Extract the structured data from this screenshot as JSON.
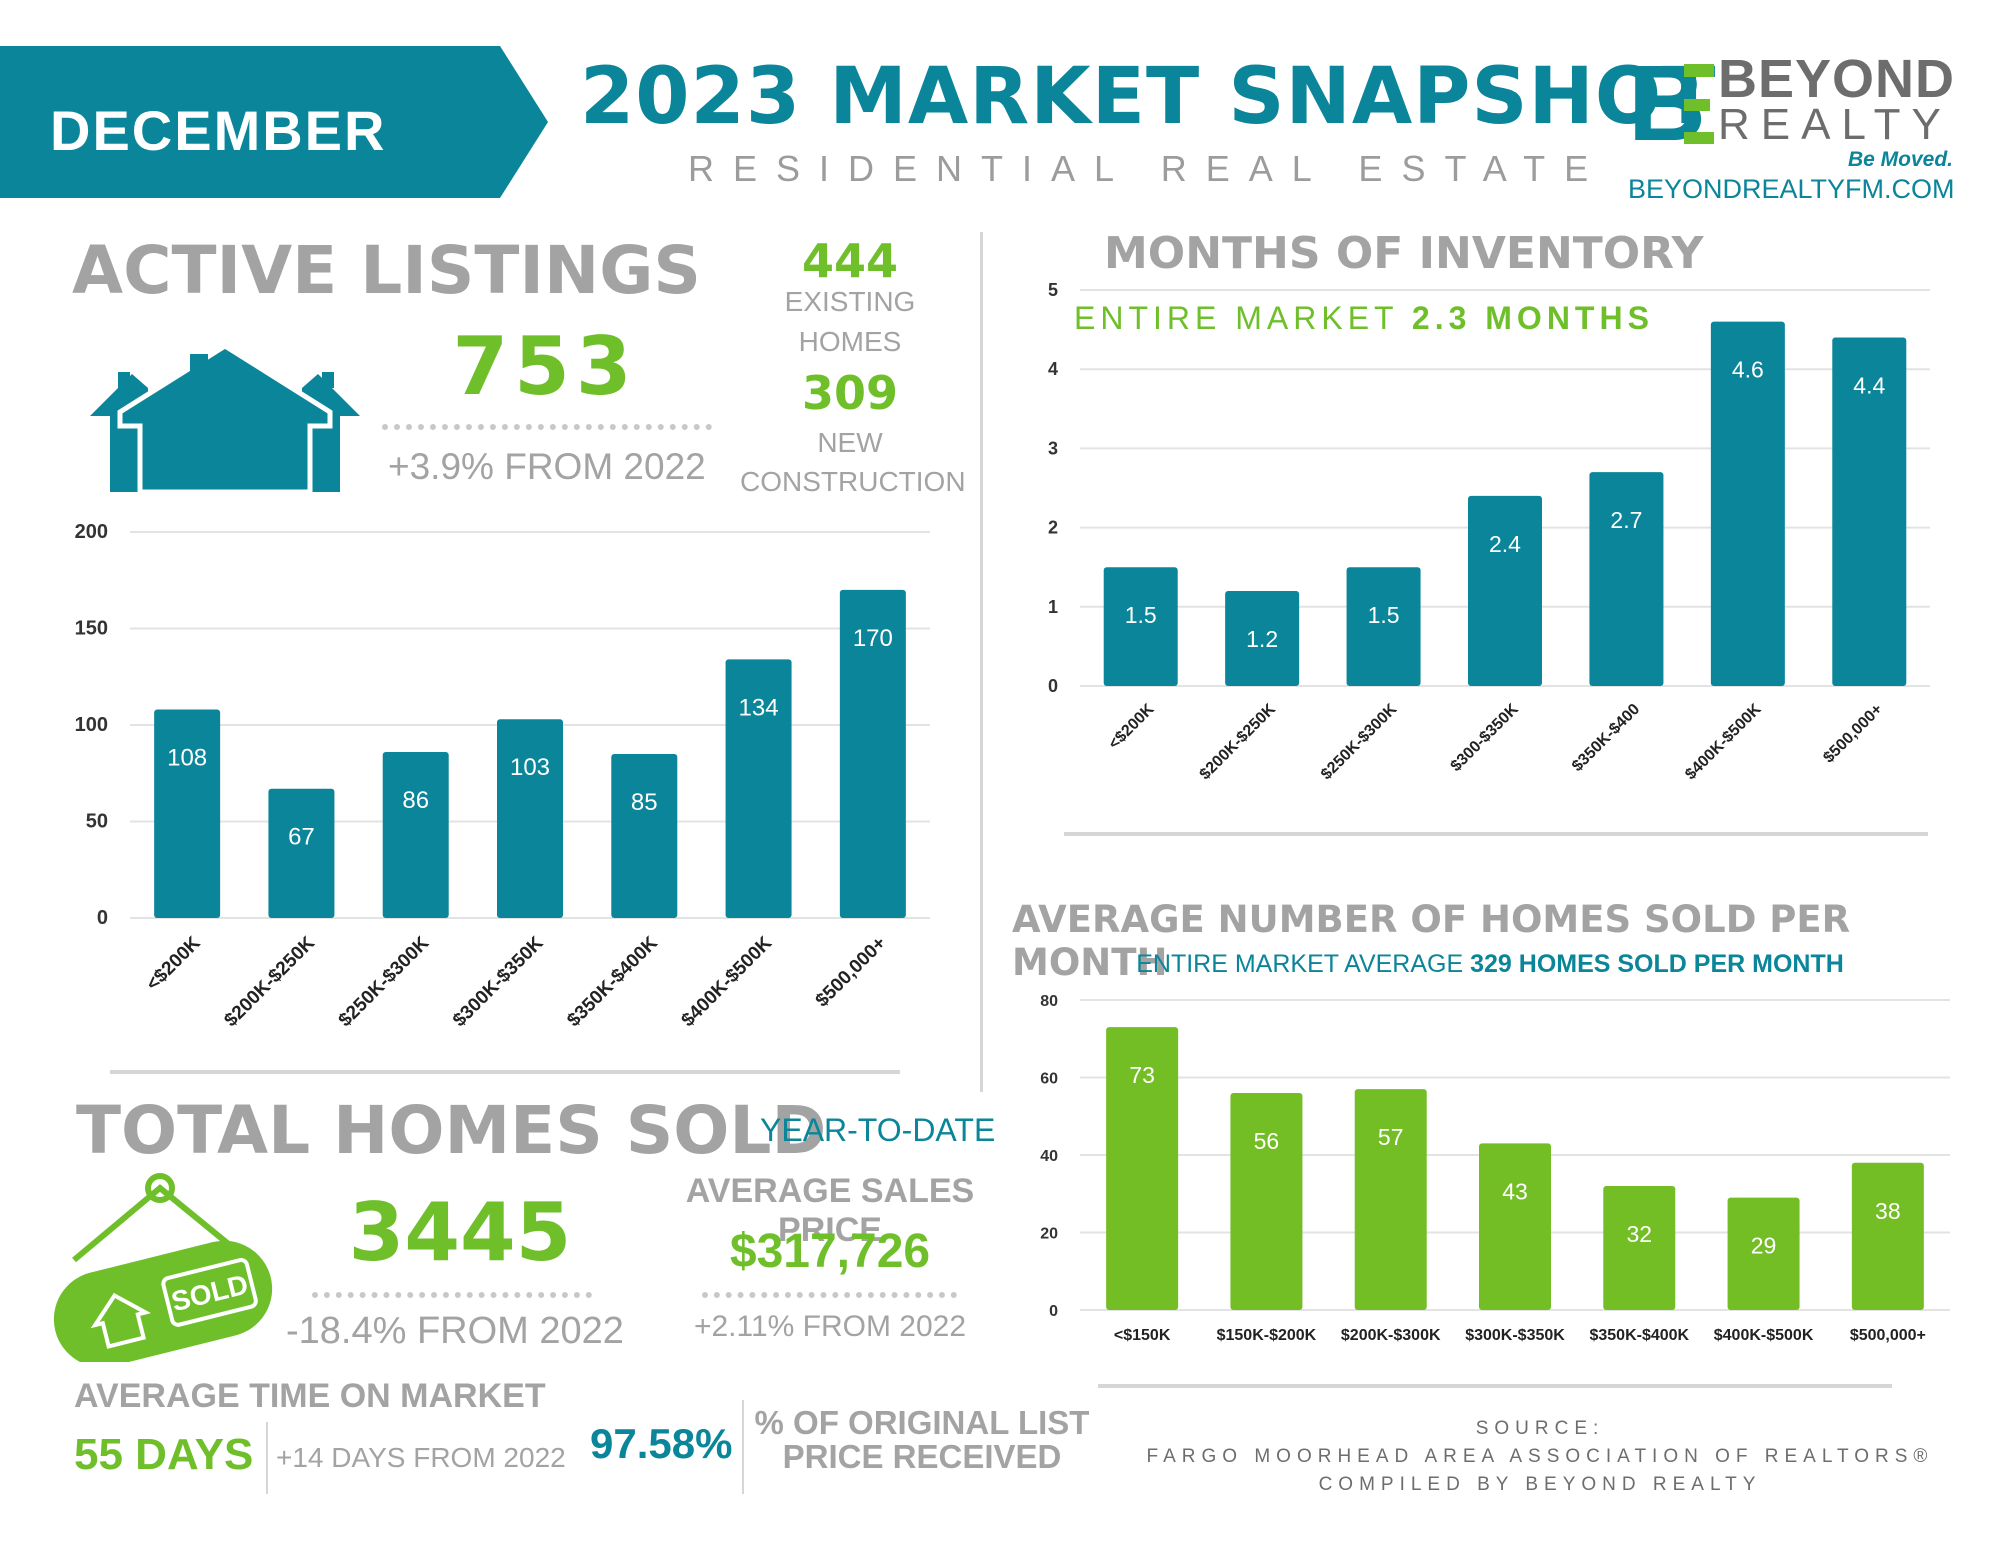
{
  "header": {
    "month": "DECEMBER",
    "title": "2023 MARKET SNAPSHOT",
    "subtitle": "RESIDENTIAL REAL ESTATE",
    "brand_line1": "BEYOND",
    "brand_line2": "REALTY",
    "tagline": "Be Moved.",
    "website": "BEYONDREALTYFM.COM"
  },
  "active_listings": {
    "heading": "ACTIVE LISTINGS",
    "total": "753",
    "change": "+3.9% FROM 2022",
    "existing_value": "444",
    "existing_label_1": "EXISTING",
    "existing_label_2": "HOMES",
    "new_value": "309",
    "new_label_1": "NEW",
    "new_label_2": "CONSTRUCTION"
  },
  "total_sold": {
    "heading": "TOTAL HOMES SOLD",
    "ytd": "YEAR-TO-DATE",
    "value": "3445",
    "change": "-18.4% FROM 2022",
    "sign_text": "SOLD",
    "avg_price_label": "AVERAGE SALES PRICE",
    "avg_price": "$317,726",
    "avg_price_change": "+2.11% FROM 2022"
  },
  "time_on_market": {
    "label": "AVERAGE TIME ON MARKET",
    "value": "55 DAYS",
    "change": "+14 DAYS FROM 2022"
  },
  "list_price": {
    "value": "97.58%",
    "label_1": "% OF ORIGINAL LIST",
    "label_2": "PRICE RECEIVED"
  },
  "inventory": {
    "heading": "MONTHS OF INVENTORY",
    "entire_prefix": "ENTIRE MARKET",
    "entire_value": "2.3 MONTHS"
  },
  "homes_sold_month": {
    "heading": "AVERAGE NUMBER OF HOMES SOLD PER MONTH",
    "entire_prefix": "ENTIRE MARKET AVERAGE",
    "entire_value": "329 HOMES SOLD PER MONTH"
  },
  "source": {
    "line1": "SOURCE:",
    "line2": "FARGO MOORHEAD AREA ASSOCIATION OF REALTORS®",
    "line3": "COMPILED BY BEYOND REALTY"
  },
  "colors": {
    "teal": "#0a8599",
    "green": "#6fbf2a",
    "grey": "#a3a3a3"
  },
  "chart_data": [
    {
      "id": "listings",
      "type": "bar",
      "categories": [
        "<$200K",
        "$200K-$250K",
        "$250K-$300K",
        "$300K-$350K",
        "$350K-$400K",
        "$400K-$500K",
        "$500,000+"
      ],
      "values": [
        108,
        67,
        86,
        103,
        85,
        134,
        170
      ],
      "labels": [
        "108",
        "67",
        "86",
        "103",
        "85",
        "134",
        "170"
      ],
      "yticks": [
        "0",
        "50",
        "100",
        "150",
        "200"
      ],
      "ylim": [
        0,
        200
      ],
      "color": "#0a8599",
      "grid": true
    },
    {
      "id": "inventory",
      "type": "bar",
      "categories": [
        "<$200K",
        "$200K-$250K",
        "$250K-$300K",
        "$300-$350K",
        "$350K-$400",
        "$400K-$500K",
        "$500,000+"
      ],
      "values": [
        1.5,
        1.2,
        1.5,
        2.4,
        2.7,
        4.6,
        4.4
      ],
      "labels": [
        "1.5",
        "1.2",
        "1.5",
        "2.4",
        "2.7",
        "4.6",
        "4.4"
      ],
      "yticks": [
        "0",
        "1",
        "2",
        "3",
        "4",
        "5"
      ],
      "ylim": [
        0,
        5
      ],
      "color": "#0a8599",
      "grid": true
    },
    {
      "id": "sold",
      "type": "bar",
      "categories": [
        "<$150K",
        "$150K-$200K",
        "$200K-$300K",
        "$300K-$350K",
        "$350K-$400K",
        "$400K-$500K",
        "$500,000+"
      ],
      "values": [
        73,
        56,
        57,
        43,
        32,
        29,
        38
      ],
      "labels": [
        "73",
        "56",
        "57",
        "43",
        "32",
        "29",
        "38"
      ],
      "yticks": [
        "0",
        "20",
        "40",
        "60",
        "80"
      ],
      "ylim": [
        0,
        80
      ],
      "color": "#74be25",
      "grid": true
    }
  ]
}
